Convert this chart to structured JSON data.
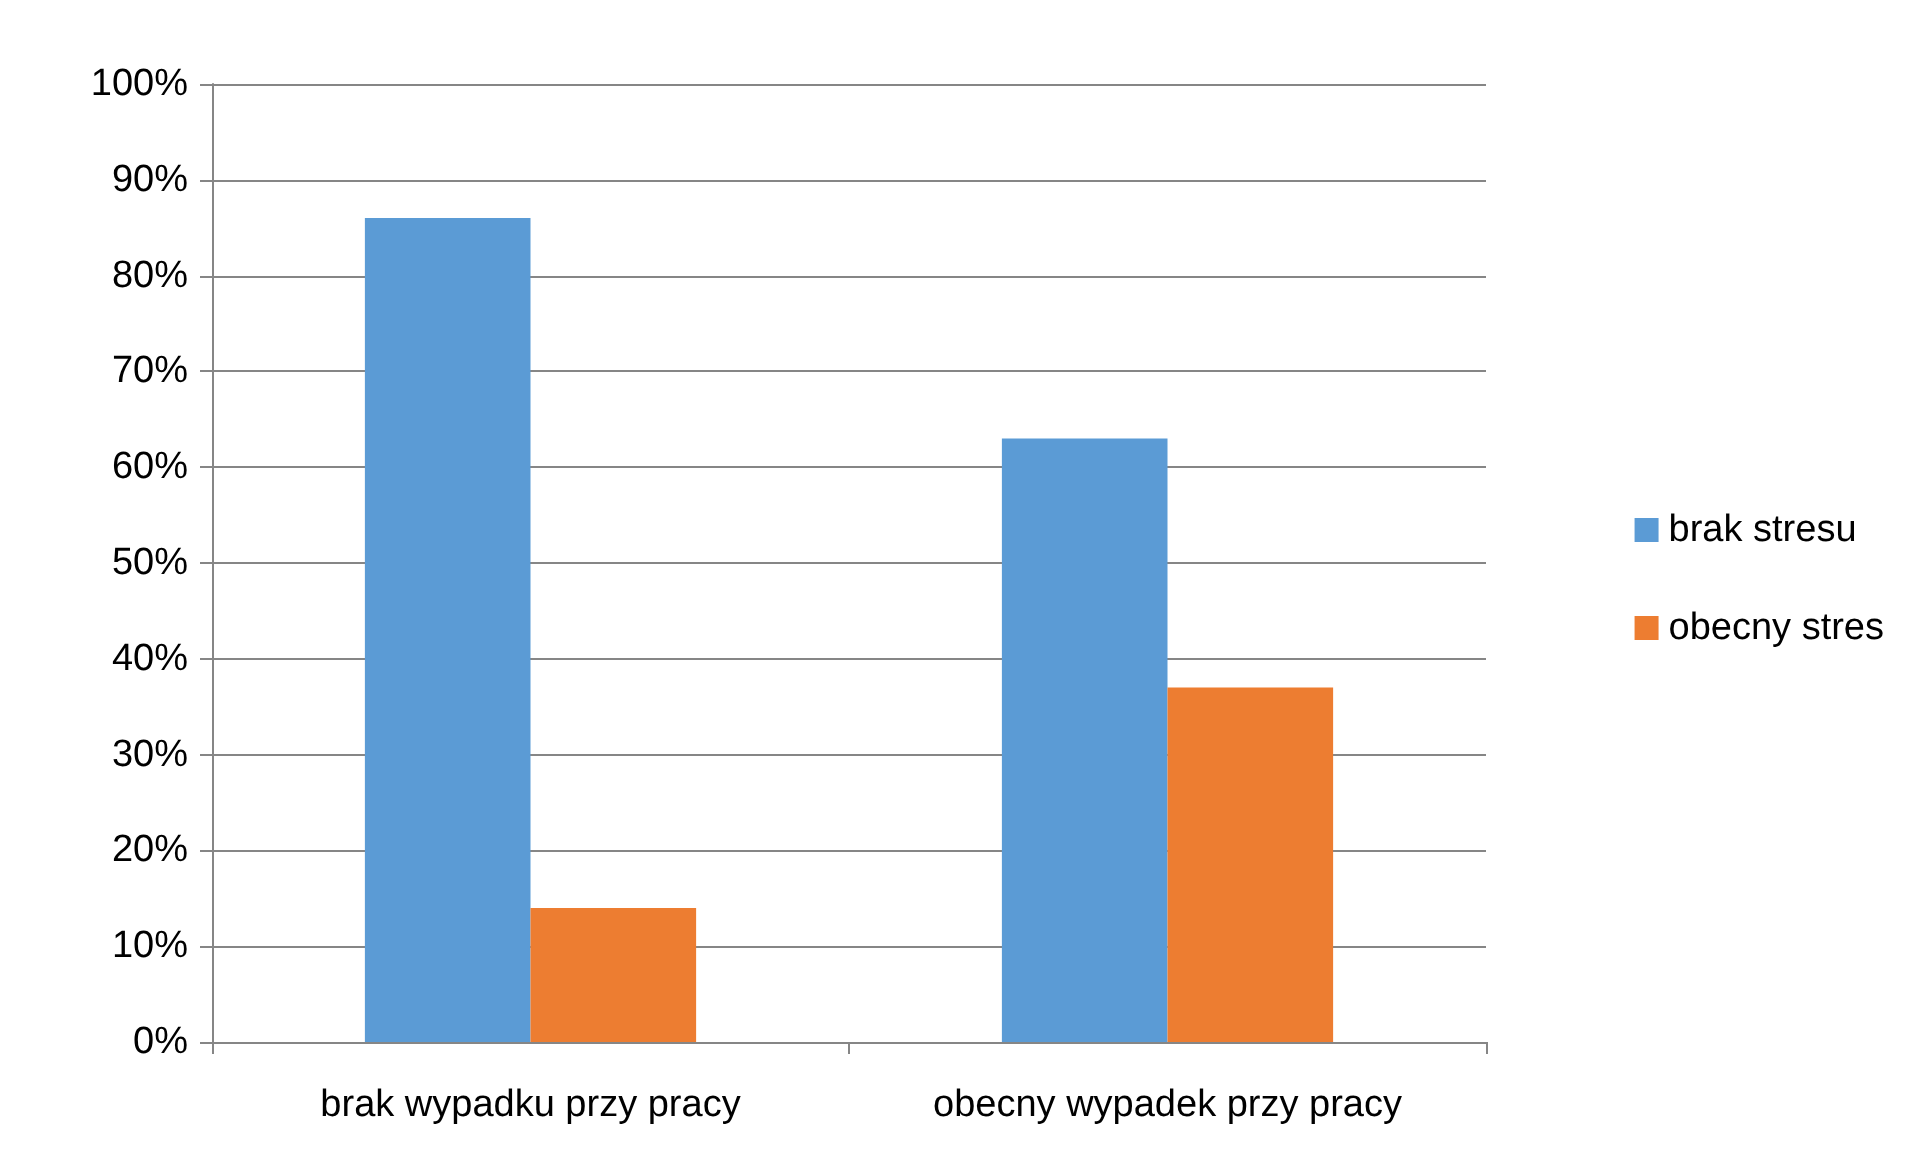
{
  "chart_data": {
    "type": "bar",
    "categories": [
      "brak wypadku przy pracy",
      "obecny wypadek przy pracy"
    ],
    "series": [
      {
        "name": "brak stresu",
        "color": "#5b9bd5",
        "values": [
          86,
          63
        ]
      },
      {
        "name": "obecny stres",
        "color": "#ed7d31",
        "values": [
          14,
          37
        ]
      }
    ],
    "ylim": [
      0,
      100
    ],
    "yticks": [
      {
        "value": 0,
        "label": "0%"
      },
      {
        "value": 10,
        "label": "10%"
      },
      {
        "value": 20,
        "label": "20%"
      },
      {
        "value": 30,
        "label": "30%"
      },
      {
        "value": 40,
        "label": "40%"
      },
      {
        "value": 50,
        "label": "50%"
      },
      {
        "value": 60,
        "label": "60%"
      },
      {
        "value": 70,
        "label": "70%"
      },
      {
        "value": 80,
        "label": "80%"
      },
      {
        "value": 90,
        "label": "90%"
      },
      {
        "value": 100,
        "label": "100%"
      }
    ],
    "grid": "y",
    "legend": "right"
  }
}
